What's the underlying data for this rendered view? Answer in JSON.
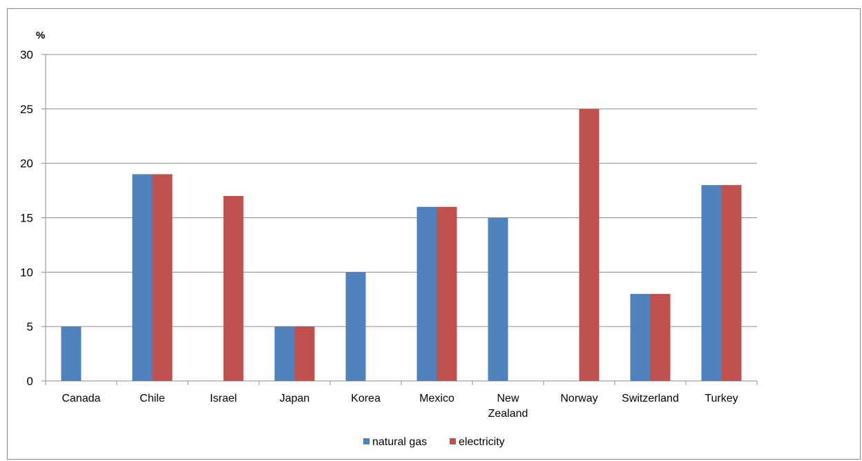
{
  "chart_data": {
    "type": "bar",
    "unit_label": "%",
    "categories": [
      [
        "Canada"
      ],
      [
        "Chile"
      ],
      [
        "Israel"
      ],
      [
        "Japan"
      ],
      [
        "Korea"
      ],
      [
        "Mexico"
      ],
      [
        "New",
        "Zealand"
      ],
      [
        "Norway"
      ],
      [
        "Switzerland"
      ],
      [
        "Turkey"
      ]
    ],
    "series": [
      {
        "name": "natural gas",
        "color": "#4f81bd",
        "values": [
          5,
          19,
          0,
          5,
          10,
          16,
          15,
          0,
          8,
          18
        ]
      },
      {
        "name": "electricity",
        "color": "#c0504d",
        "values": [
          0,
          19,
          17,
          5,
          0,
          16,
          0,
          25,
          8,
          18
        ]
      }
    ],
    "ylim": [
      0,
      30
    ],
    "yticks": [
      0,
      5,
      10,
      15,
      20,
      25,
      30
    ],
    "grid": true,
    "legend_position": "bottom-center"
  }
}
